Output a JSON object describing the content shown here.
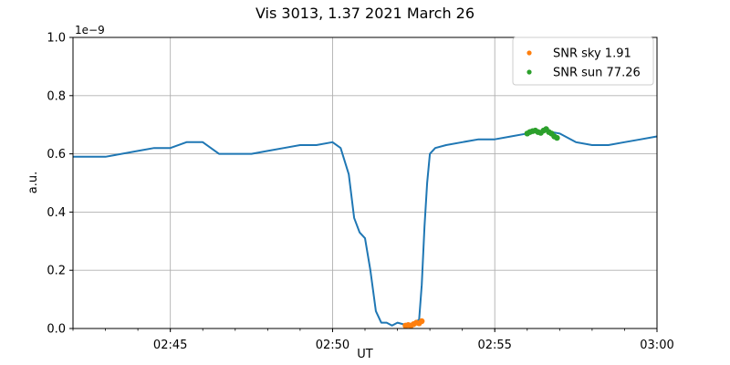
{
  "chart_data": {
    "type": "line+scatter",
    "title": "Vis 3013, 1.37 2021 March 26",
    "xlabel": "UT",
    "ylabel": "a.u.",
    "y_multiplier": "1e−9",
    "xlim": [
      "02:42",
      "03:00"
    ],
    "ylim": [
      0,
      1.0
    ],
    "x_ticks": [
      "02:45",
      "02:50",
      "02:55",
      "03:00"
    ],
    "y_ticks": [
      "0.0",
      "0.2",
      "0.4",
      "0.6",
      "0.8",
      "1.0"
    ],
    "grid": true,
    "legend_position": "top-right",
    "line_color": "#1f77b4",
    "series": [
      {
        "kind": "line",
        "color": "#1f77b4",
        "x": [
          "02:42:00",
          "02:43:00",
          "02:44:00",
          "02:44:30",
          "02:45:00",
          "02:45:30",
          "02:46:00",
          "02:46:30",
          "02:47:00",
          "02:47:30",
          "02:48:00",
          "02:48:30",
          "02:49:00",
          "02:49:30",
          "02:50:00",
          "02:50:15",
          "02:50:30",
          "02:50:40",
          "02:50:50",
          "02:51:00",
          "02:51:10",
          "02:51:20",
          "02:51:30",
          "02:51:40",
          "02:51:50",
          "02:52:00",
          "02:52:20",
          "02:52:30",
          "02:52:40",
          "02:52:45",
          "02:52:50",
          "02:52:55",
          "02:53:00",
          "02:53:10",
          "02:53:30",
          "02:54:00",
          "02:54:30",
          "02:55:00",
          "02:55:30",
          "02:56:00",
          "02:56:30",
          "02:57:00",
          "02:57:30",
          "02:58:00",
          "02:58:30",
          "02:59:00",
          "02:59:30",
          "03:00:00"
        ],
        "y": [
          0.59,
          0.59,
          0.61,
          0.62,
          0.62,
          0.64,
          0.64,
          0.6,
          0.6,
          0.6,
          0.61,
          0.62,
          0.63,
          0.63,
          0.64,
          0.62,
          0.53,
          0.38,
          0.33,
          0.31,
          0.2,
          0.06,
          0.02,
          0.02,
          0.01,
          0.02,
          0.01,
          0.02,
          0.03,
          0.15,
          0.35,
          0.5,
          0.6,
          0.62,
          0.63,
          0.64,
          0.65,
          0.65,
          0.66,
          0.67,
          0.68,
          0.67,
          0.64,
          0.63,
          0.63,
          0.64,
          0.65,
          0.66
        ]
      },
      {
        "kind": "scatter",
        "name": "SNR sky 1.91",
        "color": "#ff7f0e",
        "x": [
          "02:52:15",
          "02:52:20",
          "02:52:25",
          "02:52:30",
          "02:52:35",
          "02:52:40",
          "02:52:45"
        ],
        "y": [
          0.01,
          0.012,
          0.01,
          0.015,
          0.02,
          0.018,
          0.025
        ]
      },
      {
        "kind": "scatter",
        "name": "SNR sun 77.26",
        "color": "#2ca02c",
        "x": [
          "02:56:00",
          "02:56:05",
          "02:56:10",
          "02:56:15",
          "02:56:20",
          "02:56:25",
          "02:56:30",
          "02:56:35",
          "02:56:40",
          "02:56:45",
          "02:56:50",
          "02:56:55"
        ],
        "y": [
          0.67,
          0.675,
          0.678,
          0.68,
          0.675,
          0.672,
          0.68,
          0.685,
          0.675,
          0.67,
          0.66,
          0.655
        ]
      }
    ]
  }
}
